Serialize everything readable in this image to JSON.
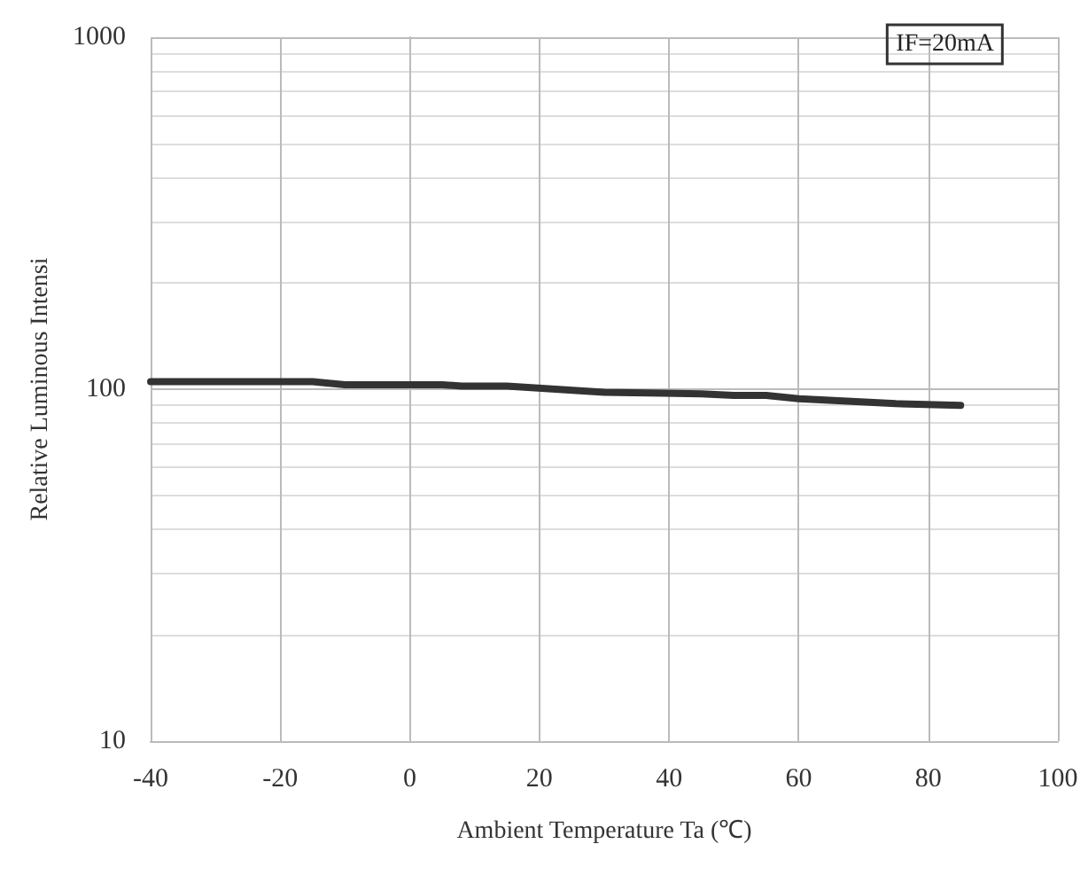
{
  "chart_data": {
    "type": "line",
    "xlabel": "Ambient Temperature Ta (℃)",
    "ylabel": "Relative Luminous Intensi",
    "annotations": [
      "IF=20mA"
    ],
    "x": [
      -40,
      -15,
      -10,
      0,
      5,
      8,
      15,
      30,
      45,
      50,
      55,
      60,
      75,
      85
    ],
    "series": [
      {
        "color": "#333333",
        "values": [
          105,
          105,
          103,
          103,
          103,
          102,
          102,
          98,
          97,
          96,
          96,
          94,
          91,
          90
        ]
      }
    ],
    "xlim": [
      -40,
      100
    ],
    "xticks": [
      -40,
      -20,
      0,
      20,
      40,
      60,
      80,
      100
    ],
    "ylim": [
      10,
      1000
    ],
    "yticks": [
      10,
      100,
      1000
    ],
    "log": "y",
    "grid": true,
    "marker": "none",
    "line_style": "solid"
  }
}
